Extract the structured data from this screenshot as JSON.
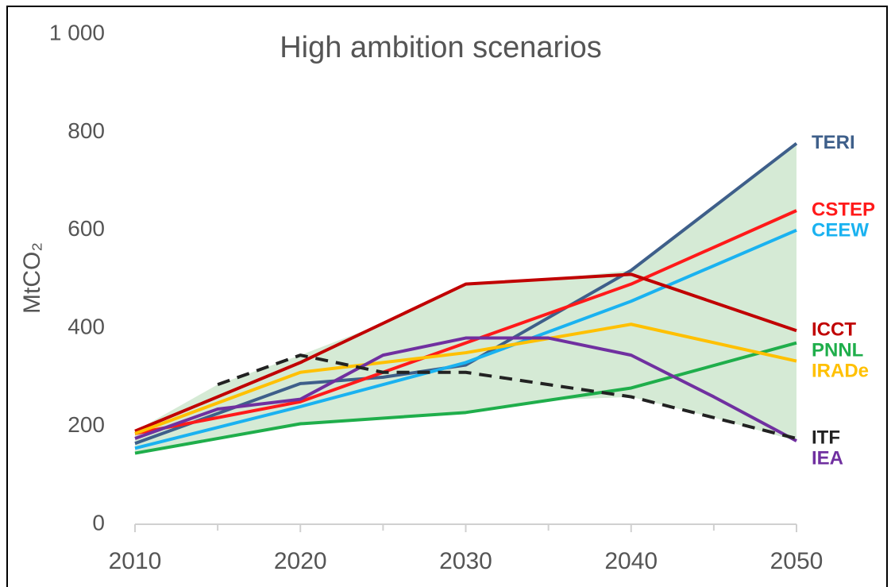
{
  "chart_data": {
    "type": "line",
    "title": "High ambition scenarios",
    "y_label": "MtCO₂",
    "xlim": [
      2010,
      2050
    ],
    "xticks": [
      2010,
      2020,
      2030,
      2040,
      2050
    ],
    "ylim": [
      0,
      1000
    ],
    "yticks": [
      0,
      200,
      400,
      600,
      800,
      {
        "value": 1000,
        "label": "1 000"
      }
    ],
    "grid": false,
    "range_fill": "#d5ead5",
    "series": [
      {
        "name": "TERI",
        "color": "#3e5f8a",
        "x": [
          2010,
          2020,
          2025,
          2030,
          2040,
          2050
        ],
        "values": [
          165,
          287,
          300,
          325,
          518,
          777
        ]
      },
      {
        "name": "CSTEP",
        "color": "#ff1a1a",
        "x": [
          2010,
          2020,
          2030,
          2040,
          2050
        ],
        "values": [
          185,
          250,
          370,
          490,
          640
        ]
      },
      {
        "name": "CEEW",
        "color": "#1ab2f0",
        "x": [
          2010,
          2020,
          2030,
          2040,
          2050
        ],
        "values": [
          155,
          240,
          330,
          455,
          600
        ]
      },
      {
        "name": "ICCT",
        "color": "#c00000",
        "x": [
          2010,
          2020,
          2030,
          2040,
          2050
        ],
        "values": [
          190,
          330,
          490,
          510,
          395
        ]
      },
      {
        "name": "PNNL",
        "color": "#1fae4b",
        "x": [
          2010,
          2020,
          2030,
          2040,
          2050
        ],
        "values": [
          145,
          205,
          228,
          278,
          370
        ]
      },
      {
        "name": "IRADe",
        "color": "#ffc000",
        "x": [
          2010,
          2020,
          2030,
          2040,
          2050
        ],
        "values": [
          185,
          310,
          350,
          408,
          333
        ]
      },
      {
        "name": "IEA",
        "color": "#7030a0",
        "x": [
          2010,
          2015,
          2020,
          2025,
          2030,
          2035,
          2040,
          2045,
          2050
        ],
        "values": [
          175,
          235,
          255,
          345,
          380,
          380,
          345,
          260,
          170
        ]
      },
      {
        "name": "ITF",
        "color": "#222222",
        "dashed": true,
        "x": [
          2015,
          2020,
          2025,
          2030,
          2040,
          2050
        ],
        "values": [
          285,
          345,
          310,
          310,
          260,
          175
        ]
      }
    ]
  }
}
